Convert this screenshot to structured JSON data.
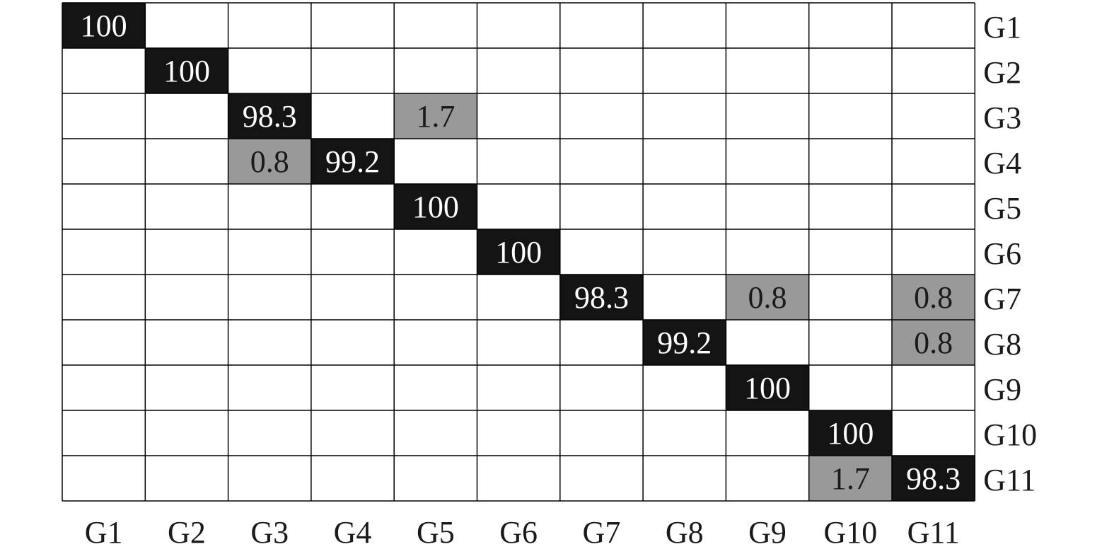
{
  "chart_data": {
    "type": "heatmap",
    "title": "",
    "xlabel": "",
    "ylabel": "",
    "x_categories": [
      "G1",
      "G2",
      "G3",
      "G4",
      "G5",
      "G6",
      "G7",
      "G8",
      "G9",
      "G10",
      "G11"
    ],
    "y_categories": [
      "G1",
      "G2",
      "G3",
      "G4",
      "G5",
      "G6",
      "G7",
      "G8",
      "G9",
      "G10",
      "G11"
    ],
    "y_label_side": "right",
    "grid": true,
    "colors": {
      "high": "#141414",
      "low": "#999999",
      "empty": "#ffffff",
      "grid": "#000000",
      "text_on_high": "#ffffff",
      "text_on_low": "#1a1a1a"
    },
    "cells": [
      {
        "row": "G1",
        "col": "G1",
        "value": 100,
        "label": "100"
      },
      {
        "row": "G2",
        "col": "G2",
        "value": 100,
        "label": "100"
      },
      {
        "row": "G3",
        "col": "G3",
        "value": 98.3,
        "label": "98.3"
      },
      {
        "row": "G3",
        "col": "G5",
        "value": 1.7,
        "label": "1.7"
      },
      {
        "row": "G4",
        "col": "G3",
        "value": 0.8,
        "label": "0.8"
      },
      {
        "row": "G4",
        "col": "G4",
        "value": 99.2,
        "label": "99.2"
      },
      {
        "row": "G5",
        "col": "G5",
        "value": 100,
        "label": "100"
      },
      {
        "row": "G6",
        "col": "G6",
        "value": 100,
        "label": "100"
      },
      {
        "row": "G7",
        "col": "G7",
        "value": 98.3,
        "label": "98.3"
      },
      {
        "row": "G7",
        "col": "G9",
        "value": 0.8,
        "label": "0.8"
      },
      {
        "row": "G7",
        "col": "G11",
        "value": 0.8,
        "label": "0.8"
      },
      {
        "row": "G8",
        "col": "G8",
        "value": 99.2,
        "label": "99.2"
      },
      {
        "row": "G8",
        "col": "G11",
        "value": 0.8,
        "label": "0.8"
      },
      {
        "row": "G9",
        "col": "G9",
        "value": 100,
        "label": "100"
      },
      {
        "row": "G10",
        "col": "G10",
        "value": 100,
        "label": "100"
      },
      {
        "row": "G11",
        "col": "G10",
        "value": 1.7,
        "label": "1.7"
      },
      {
        "row": "G11",
        "col": "G11",
        "value": 98.3,
        "label": "98.3"
      }
    ]
  }
}
